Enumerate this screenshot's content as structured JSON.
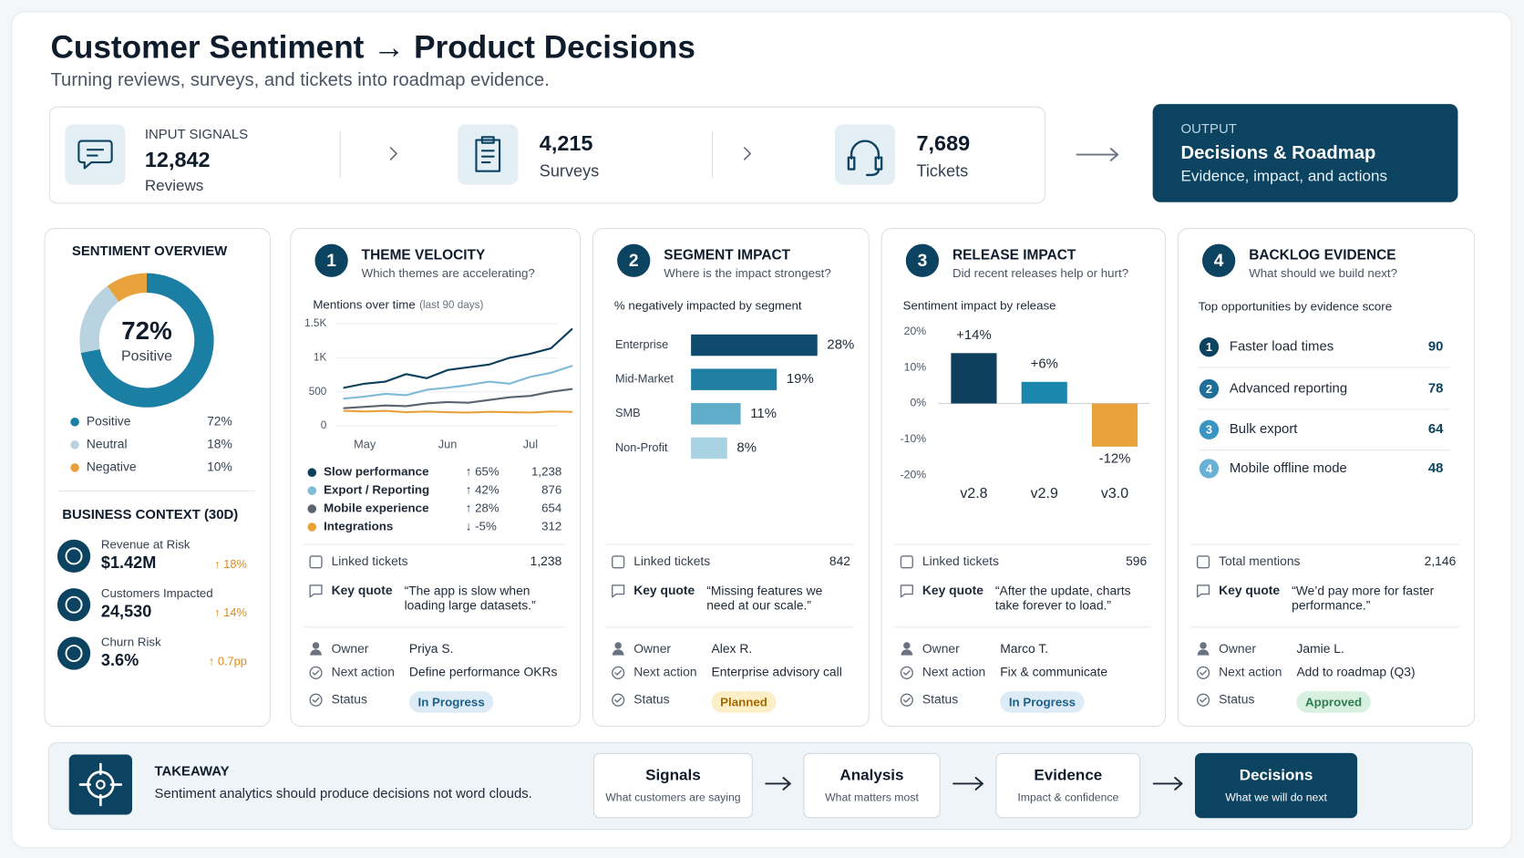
{
  "header": {
    "title": "Customer Sentiment → Product Decisions",
    "subtitle": "Turning reviews, surveys, and tickets into roadmap evidence."
  },
  "inputs": {
    "label": "INPUT SIGNALS",
    "items": [
      {
        "value": "12,842",
        "unit": "Reviews"
      },
      {
        "value": "4,215",
        "unit": "Surveys"
      },
      {
        "value": "7,689",
        "unit": "Tickets"
      }
    ]
  },
  "output": {
    "label": "OUTPUT",
    "title": "Decisions & Roadmap",
    "subtitle": "Evidence, impact, and actions"
  },
  "chart_data": [
    {
      "type": "donut",
      "title": "SENTIMENT OVERVIEW",
      "categories": [
        "Positive",
        "Neutral",
        "Negative"
      ],
      "values": [
        72,
        18,
        10
      ],
      "value_labels": [
        "72%",
        "18%",
        "10%"
      ],
      "colors": [
        "#1b7fa3",
        "#b9d3e0",
        "#e9a23b"
      ]
    },
    {
      "type": "line",
      "title": "Mentions over time",
      "subtitle": "(last 90 days)",
      "categories": [
        null,
        "May",
        null,
        null,
        null,
        "Jun",
        null,
        null,
        null,
        "Jul",
        null,
        null
      ],
      "series": [
        {
          "name": "Slow performance",
          "color": "#0e3f5c",
          "values": [
            560,
            620,
            650,
            760,
            700,
            820,
            860,
            900,
            1000,
            1060,
            1140,
            1420
          ],
          "change": "↑ 65%",
          "total": "1,238"
        },
        {
          "name": "Export / Reporting",
          "color": "#7fbad6",
          "values": [
            400,
            430,
            470,
            450,
            530,
            560,
            600,
            650,
            620,
            720,
            780,
            880
          ],
          "change": "↑ 42%",
          "total": "876"
        },
        {
          "name": "Mobile experience",
          "color": "#5b6470",
          "values": [
            260,
            280,
            300,
            290,
            330,
            350,
            340,
            380,
            420,
            440,
            500,
            540
          ],
          "change": "↑ 28%",
          "total": "654"
        },
        {
          "name": "Integrations",
          "color": "#e9a23b",
          "values": [
            220,
            210,
            220,
            200,
            210,
            200,
            195,
            205,
            200,
            195,
            210,
            205
          ],
          "change": "↓ -5%",
          "total": "312"
        }
      ],
      "ylim": [
        0,
        1500
      ],
      "yticks": [
        0,
        500,
        {
          "value": 1000,
          "label": "1K"
        },
        {
          "value": 1500,
          "label": "1.5K"
        }
      ],
      "grid": true
    },
    {
      "type": "hbar",
      "title": "% negatively impacted by segment",
      "categories": [
        "Enterprise",
        "Mid-Market",
        "SMB",
        "Non-Profit"
      ],
      "values": [
        28,
        19,
        11,
        8
      ],
      "value_labels": [
        "28%",
        "19%",
        "11%",
        "8%"
      ],
      "colors": [
        "#0e4a6b",
        "#1f7fa3",
        "#5fadc9",
        "#a9d2e3"
      ]
    },
    {
      "type": "bar",
      "title": "Sentiment impact by release",
      "categories": [
        "v2.8",
        "v2.9",
        "v3.0"
      ],
      "values": [
        14,
        6,
        -12
      ],
      "value_labels": [
        "+14%",
        "+6%",
        "-12%"
      ],
      "colors": [
        "#0e3f5c",
        "#1b87ad",
        "#e9a23b"
      ],
      "ylim": [
        -20,
        20
      ],
      "yticks": [
        {
          "value": -20,
          "label": "-20%"
        },
        {
          "value": -10,
          "label": "-10%"
        },
        {
          "value": 0,
          "label": "0%"
        },
        {
          "value": 10,
          "label": "10%"
        },
        {
          "value": 20,
          "label": "20%"
        }
      ]
    }
  ],
  "business_context": {
    "title": "BUSINESS CONTEXT (30D)",
    "items": [
      {
        "label": "Revenue at Risk",
        "value": "$1.42M",
        "change": "↑ 18%"
      },
      {
        "label": "Customers Impacted",
        "value": "24,530",
        "change": "↑ 14%"
      },
      {
        "label": "Churn Risk",
        "value": "3.6%",
        "change": "↑ 0.7pp"
      }
    ]
  },
  "panels": [
    {
      "number": "1",
      "title": "THEME VELOCITY",
      "question": "Which themes are accelerating?",
      "metric": {
        "label": "Linked tickets",
        "value": "1,238"
      },
      "quote": {
        "label": "Key quote",
        "text": "“The app is slow when loading large datasets.”"
      },
      "owner": {
        "label": "Owner",
        "value": "Priya S."
      },
      "next_action": {
        "label": "Next action",
        "value": "Define performance OKRs"
      },
      "status": {
        "label": "Status",
        "value": "In Progress"
      }
    },
    {
      "number": "2",
      "title": "SEGMENT IMPACT",
      "question": "Where is the impact strongest?",
      "metric": {
        "label": "Linked tickets",
        "value": "842"
      },
      "quote": {
        "label": "Key quote",
        "text": "“Missing features we need at our scale.”"
      },
      "owner": {
        "label": "Owner",
        "value": "Alex R."
      },
      "next_action": {
        "label": "Next action",
        "value": "Enterprise advisory call"
      },
      "status": {
        "label": "Status",
        "value": "Planned"
      }
    },
    {
      "number": "3",
      "title": "RELEASE IMPACT",
      "question": "Did recent releases help or hurt?",
      "metric": {
        "label": "Linked tickets",
        "value": "596"
      },
      "quote": {
        "label": "Key quote",
        "text": "“After the update, charts take forever to load.”"
      },
      "owner": {
        "label": "Owner",
        "value": "Marco T."
      },
      "next_action": {
        "label": "Next action",
        "value": "Fix & communicate"
      },
      "status": {
        "label": "Status",
        "value": "In Progress"
      }
    },
    {
      "number": "4",
      "title": "BACKLOG EVIDENCE",
      "question": "What should we build next?",
      "list": {
        "title": "Top opportunities by evidence score",
        "items": [
          {
            "rank": "1",
            "name": "Faster load times",
            "score": "90"
          },
          {
            "rank": "2",
            "name": "Advanced reporting",
            "score": "78"
          },
          {
            "rank": "3",
            "name": "Bulk export",
            "score": "64"
          },
          {
            "rank": "4",
            "name": "Mobile offline mode",
            "score": "48"
          }
        ]
      },
      "metric": {
        "label": "Total mentions",
        "value": "2,146"
      },
      "quote": {
        "label": "Key quote",
        "text": "“We’d pay more for faster performance.”"
      },
      "owner": {
        "label": "Owner",
        "value": "Jamie L."
      },
      "next_action": {
        "label": "Next action",
        "value": "Add to roadmap (Q3)"
      },
      "status": {
        "label": "Status",
        "value": "Approved"
      }
    }
  ],
  "takeaway": {
    "label": "TAKEAWAY",
    "text": "Sentiment analytics should produce decisions not word clouds.",
    "steps": [
      {
        "title": "Signals",
        "subtitle": "What customers are saying"
      },
      {
        "title": "Analysis",
        "subtitle": "What matters most"
      },
      {
        "title": "Evidence",
        "subtitle": "Impact & confidence"
      },
      {
        "title": "Decisions",
        "subtitle": "What we will do next"
      }
    ]
  }
}
